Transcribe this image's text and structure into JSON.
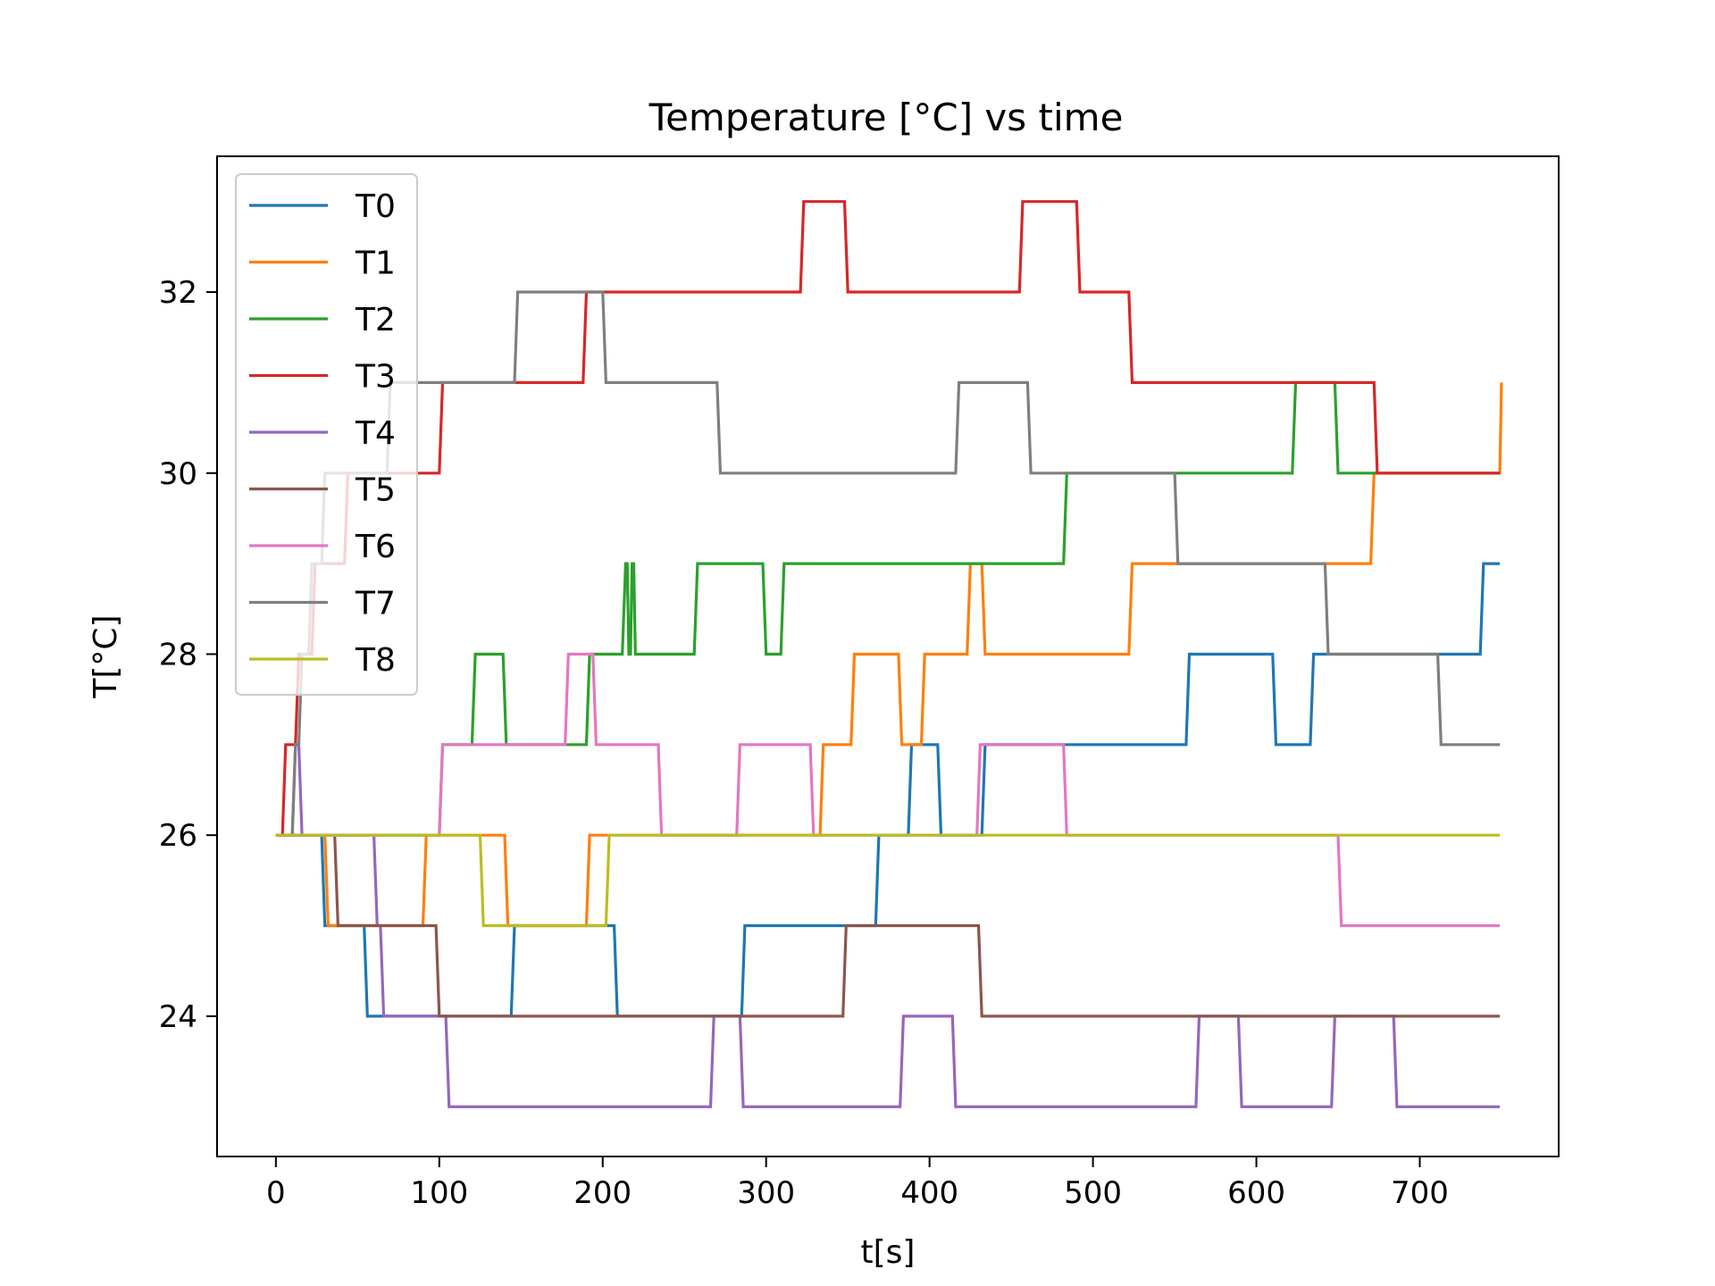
{
  "chart_data": {
    "type": "line",
    "step": "post",
    "title": "Temperature [°C] vs time",
    "xlabel": "t[s]",
    "ylabel": "T[°C]",
    "xlim": [
      -36,
      785
    ],
    "ylim": [
      22.45,
      33.5
    ],
    "xticks": [
      0,
      100,
      200,
      300,
      400,
      500,
      600,
      700
    ],
    "yticks": [
      24,
      26,
      28,
      30,
      32
    ],
    "grid": false,
    "legend_position": "top-left",
    "series": [
      {
        "name": "T0",
        "color": "#1f77b4",
        "points": [
          [
            0,
            26
          ],
          [
            28,
            26
          ],
          [
            30,
            25
          ],
          [
            54,
            25
          ],
          [
            56,
            24
          ],
          [
            144,
            24
          ],
          [
            146,
            25
          ],
          [
            207,
            25
          ],
          [
            209,
            24
          ],
          [
            285,
            24
          ],
          [
            287,
            25
          ],
          [
            367,
            25
          ],
          [
            369,
            26
          ],
          [
            387,
            26
          ],
          [
            389,
            27
          ],
          [
            405,
            27
          ],
          [
            407,
            26
          ],
          [
            432,
            26
          ],
          [
            434,
            27
          ],
          [
            557,
            27
          ],
          [
            559,
            28
          ],
          [
            610,
            28
          ],
          [
            612,
            27
          ],
          [
            633,
            27
          ],
          [
            635,
            28
          ],
          [
            737,
            28
          ],
          [
            739,
            29
          ],
          [
            749,
            29
          ]
        ]
      },
      {
        "name": "T1",
        "color": "#ff7f0e",
        "points": [
          [
            0,
            26
          ],
          [
            30,
            26
          ],
          [
            32,
            25
          ],
          [
            90,
            25
          ],
          [
            92,
            26
          ],
          [
            140,
            26
          ],
          [
            142,
            25
          ],
          [
            190,
            25
          ],
          [
            192,
            26
          ],
          [
            333,
            26
          ],
          [
            335,
            27
          ],
          [
            352,
            27
          ],
          [
            354,
            28
          ],
          [
            381,
            28
          ],
          [
            383,
            27
          ],
          [
            395,
            27
          ],
          [
            397,
            28
          ],
          [
            423,
            28
          ],
          [
            425,
            29
          ],
          [
            432,
            29
          ],
          [
            434,
            28
          ],
          [
            522,
            28
          ],
          [
            524,
            29
          ],
          [
            670,
            29
          ],
          [
            672,
            30
          ],
          [
            749,
            30
          ],
          [
            750,
            31
          ]
        ]
      },
      {
        "name": "T2",
        "color": "#2ca02c",
        "points": [
          [
            0,
            26
          ],
          [
            100,
            26
          ],
          [
            102,
            27
          ],
          [
            120,
            27
          ],
          [
            122,
            28
          ],
          [
            139,
            28
          ],
          [
            141,
            27
          ],
          [
            190,
            27
          ],
          [
            192,
            28
          ],
          [
            212,
            28
          ],
          [
            214,
            29
          ],
          [
            215,
            29
          ],
          [
            216,
            28
          ],
          [
            217,
            28
          ],
          [
            218,
            29
          ],
          [
            219,
            29
          ],
          [
            220,
            28
          ],
          [
            256,
            28
          ],
          [
            258,
            29
          ],
          [
            298,
            29
          ],
          [
            300,
            28
          ],
          [
            309,
            28
          ],
          [
            311,
            29
          ],
          [
            482,
            29
          ],
          [
            484,
            30
          ],
          [
            622,
            30
          ],
          [
            624,
            31
          ],
          [
            648,
            31
          ],
          [
            650,
            30
          ],
          [
            749,
            30
          ]
        ]
      },
      {
        "name": "T3",
        "color": "#d62728",
        "points": [
          [
            0,
            26
          ],
          [
            4,
            26
          ],
          [
            6,
            27
          ],
          [
            12,
            27
          ],
          [
            14,
            28
          ],
          [
            22,
            28
          ],
          [
            24,
            29
          ],
          [
            42,
            29
          ],
          [
            44,
            30
          ],
          [
            100,
            30
          ],
          [
            102,
            31
          ],
          [
            188,
            31
          ],
          [
            190,
            32
          ],
          [
            321,
            32
          ],
          [
            323,
            33
          ],
          [
            348,
            33
          ],
          [
            350,
            32
          ],
          [
            455,
            32
          ],
          [
            457,
            33
          ],
          [
            490,
            33
          ],
          [
            492,
            32
          ],
          [
            522,
            32
          ],
          [
            524,
            31
          ],
          [
            672,
            31
          ],
          [
            674,
            30
          ],
          [
            749,
            30
          ]
        ]
      },
      {
        "name": "T4",
        "color": "#9467bd",
        "points": [
          [
            0,
            26
          ],
          [
            10,
            26
          ],
          [
            12,
            27
          ],
          [
            14,
            27
          ],
          [
            16,
            26
          ],
          [
            60,
            26
          ],
          [
            62,
            25
          ],
          [
            64,
            25
          ],
          [
            66,
            24
          ],
          [
            104,
            24
          ],
          [
            106,
            23
          ],
          [
            266,
            23
          ],
          [
            268,
            24
          ],
          [
            284,
            24
          ],
          [
            286,
            23
          ],
          [
            382,
            23
          ],
          [
            384,
            24
          ],
          [
            414,
            24
          ],
          [
            416,
            23
          ],
          [
            563,
            23
          ],
          [
            565,
            24
          ],
          [
            589,
            24
          ],
          [
            591,
            23
          ],
          [
            646,
            23
          ],
          [
            648,
            24
          ],
          [
            684,
            24
          ],
          [
            686,
            23
          ],
          [
            749,
            23
          ]
        ]
      },
      {
        "name": "T5",
        "color": "#8c564b",
        "points": [
          [
            0,
            26
          ],
          [
            36,
            26
          ],
          [
            38,
            25
          ],
          [
            98,
            25
          ],
          [
            100,
            24
          ],
          [
            347,
            24
          ],
          [
            349,
            25
          ],
          [
            430,
            25
          ],
          [
            432,
            24
          ],
          [
            749,
            24
          ]
        ]
      },
      {
        "name": "T6",
        "color": "#e377c2",
        "points": [
          [
            0,
            26
          ],
          [
            100,
            26
          ],
          [
            102,
            27
          ],
          [
            177,
            27
          ],
          [
            179,
            28
          ],
          [
            194,
            28
          ],
          [
            196,
            27
          ],
          [
            234,
            27
          ],
          [
            236,
            26
          ],
          [
            282,
            26
          ],
          [
            284,
            27
          ],
          [
            327,
            27
          ],
          [
            329,
            26
          ],
          [
            429,
            26
          ],
          [
            431,
            27
          ],
          [
            482,
            27
          ],
          [
            484,
            26
          ],
          [
            650,
            26
          ],
          [
            652,
            25
          ],
          [
            749,
            25
          ]
        ]
      },
      {
        "name": "T7",
        "color": "#7f7f7f",
        "points": [
          [
            0,
            26
          ],
          [
            10,
            26
          ],
          [
            12,
            27
          ],
          [
            14,
            27
          ],
          [
            16,
            28
          ],
          [
            20,
            28
          ],
          [
            22,
            29
          ],
          [
            28,
            29
          ],
          [
            30,
            30
          ],
          [
            68,
            30
          ],
          [
            70,
            31
          ],
          [
            146,
            31
          ],
          [
            148,
            32
          ],
          [
            200,
            32
          ],
          [
            202,
            31
          ],
          [
            270,
            31
          ],
          [
            272,
            30
          ],
          [
            416,
            30
          ],
          [
            418,
            31
          ],
          [
            460,
            31
          ],
          [
            462,
            30
          ],
          [
            550,
            30
          ],
          [
            552,
            29
          ],
          [
            642,
            29
          ],
          [
            644,
            28
          ],
          [
            711,
            28
          ],
          [
            713,
            27
          ],
          [
            749,
            27
          ]
        ]
      },
      {
        "name": "T8",
        "color": "#bcbd22",
        "points": [
          [
            0,
            26
          ],
          [
            125,
            26
          ],
          [
            127,
            25
          ],
          [
            202,
            25
          ],
          [
            204,
            26
          ],
          [
            749,
            26
          ]
        ]
      }
    ]
  }
}
